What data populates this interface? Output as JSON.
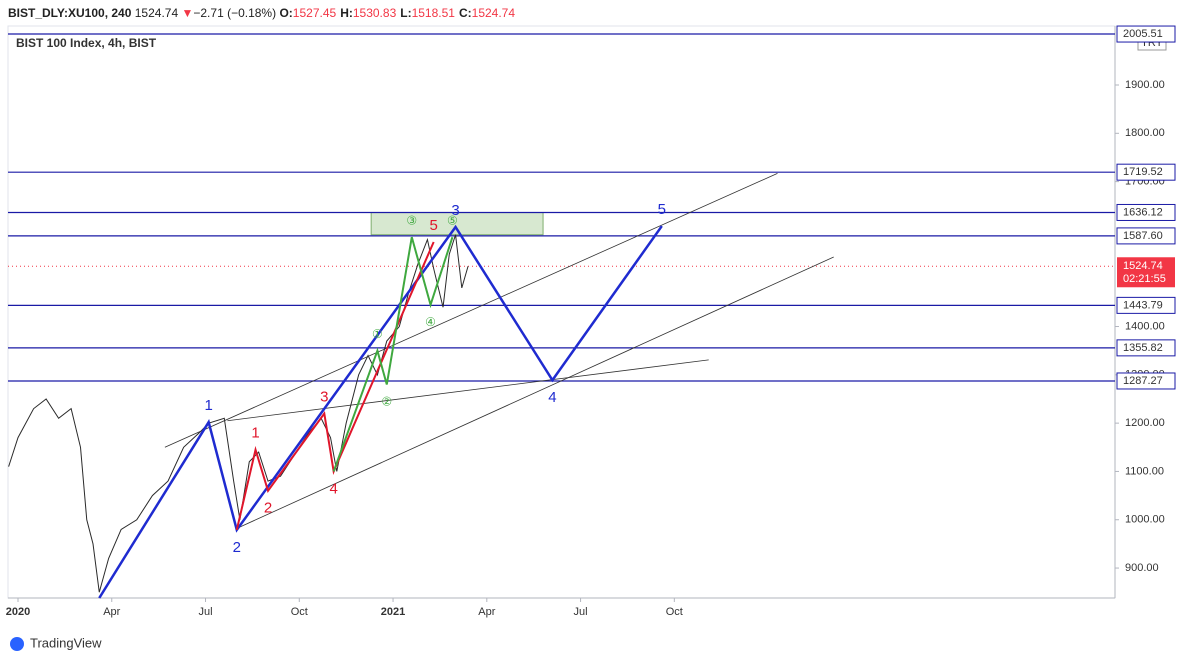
{
  "header": {
    "symbol": "BIST_DLY:XU100, 240",
    "last": "1524.74",
    "arrow": "▼",
    "change": "−2.71 (−0.18%)",
    "ohlc": [
      {
        "key": "O:",
        "value": "1527.45"
      },
      {
        "key": "H:",
        "value": "1530.83"
      },
      {
        "key": "L:",
        "value": "1518.51"
      },
      {
        "key": "C:",
        "value": "1524.74"
      }
    ]
  },
  "legend": "BIST 100 Index, 4h, BIST",
  "currency": "TRY",
  "footer": "TradingView",
  "chart_data": {
    "type": "line",
    "color": "#2a2a2a",
    "xlim": [
      -0.32,
      35.1
    ],
    "ylim": [
      838,
      2018
    ],
    "xticks": [
      {
        "value": 0,
        "label": "2020"
      },
      {
        "value": 3,
        "label": "Apr"
      },
      {
        "value": 6,
        "label": "Jul"
      },
      {
        "value": 9,
        "label": "Oct"
      },
      {
        "value": 12,
        "label": "2021"
      },
      {
        "value": 15,
        "label": "Apr"
      },
      {
        "value": 18,
        "label": "Jul"
      },
      {
        "value": 21,
        "label": "Oct"
      }
    ],
    "yticks": [
      {
        "value": 900,
        "label": "900.00"
      },
      {
        "value": 1000,
        "label": "1000.00"
      },
      {
        "value": 1100,
        "label": "1100.00"
      },
      {
        "value": 1200,
        "label": "1200.00"
      },
      {
        "value": 1300,
        "label": "1300.00"
      },
      {
        "value": 1400,
        "label": "1400.00"
      },
      {
        "value": 1700,
        "label": "1700.00"
      },
      {
        "value": 1800,
        "label": "1800.00"
      },
      {
        "value": 1900,
        "label": "1900.00"
      }
    ],
    "x": [
      -0.3,
      0,
      0.5,
      0.9,
      1.3,
      1.7,
      2.0,
      2.2,
      2.4,
      2.6,
      2.9,
      3.3,
      3.8,
      4.3,
      4.8,
      5.3,
      5.8,
      6.1,
      6.6,
      6.9,
      7.1,
      7.4,
      7.7,
      8.0,
      8.4,
      8.8,
      9.3,
      9.7,
      10.0,
      10.2,
      10.5,
      10.9,
      11.2,
      11.5,
      11.8,
      12.2,
      12.5,
      12.8,
      13.1,
      13.3,
      13.6,
      13.8,
      14.0,
      14.2,
      14.4
    ],
    "values": [
      1110,
      1170,
      1230,
      1250,
      1210,
      1230,
      1150,
      1000,
      950,
      850,
      920,
      980,
      1000,
      1050,
      1080,
      1150,
      1180,
      1200,
      1210,
      1080,
      1000,
      1120,
      1140,
      1080,
      1090,
      1130,
      1180,
      1210,
      1170,
      1100,
      1200,
      1300,
      1340,
      1300,
      1370,
      1400,
      1470,
      1530,
      1580,
      1520,
      1440,
      1550,
      1590,
      1480,
      1524.74
    ],
    "current": {
      "value": 1524.74,
      "label": "1524.74",
      "countdown": "02:21:55",
      "color": "#f23645"
    },
    "levels": [
      {
        "value": 2005.51,
        "label": "2005.51"
      },
      {
        "value": 1719.52,
        "label": "1719.52"
      },
      {
        "value": 1636.12,
        "label": "1636.12"
      },
      {
        "value": 1587.6,
        "label": "1587.60"
      },
      {
        "value": 1443.79,
        "label": "1443.79"
      },
      {
        "value": 1355.82,
        "label": "1355.82"
      },
      {
        "value": 1287.27,
        "label": "1287.27"
      }
    ],
    "level_color": "#1a1aa6",
    "zone": {
      "x": [
        11.3,
        16.8
      ],
      "y": [
        1590,
        1636
      ],
      "color": "#bcd9b0"
    },
    "trendlines": [
      {
        "x": [
          4.7,
          24.3
        ],
        "y": [
          1150,
          1717
        ]
      },
      {
        "x": [
          7.1,
          26.1
        ],
        "y": [
          985,
          1544
        ]
      },
      {
        "x": [
          6.7,
          22.1
        ],
        "y": [
          1205,
          1331
        ]
      }
    ],
    "waves": [
      {
        "color": "#1f2bd0",
        "x": [
          2.6,
          6.1,
          7.0,
          14.0,
          17.1,
          20.6
        ],
        "y": [
          838,
          1202,
          979,
          1606,
          1289,
          1608
        ],
        "labels": [
          null,
          "1",
          "2",
          "3",
          "4",
          "5"
        ]
      },
      {
        "color": "#e0162b",
        "x": [
          7.0,
          7.6,
          8.0,
          9.8,
          10.1,
          13.3
        ],
        "y": [
          979,
          1145,
          1060,
          1220,
          1100,
          1575
        ],
        "labels": [
          null,
          "1",
          "2",
          "3",
          "4",
          "5"
        ]
      },
      {
        "color": "#3fa83f",
        "x": [
          10.1,
          11.5,
          11.8,
          12.6,
          13.2,
          13.9
        ],
        "y": [
          1100,
          1350,
          1280,
          1585,
          1445,
          1585
        ],
        "labels": [
          null,
          "①",
          "②",
          "③",
          "④",
          "⑤"
        ]
      }
    ]
  }
}
